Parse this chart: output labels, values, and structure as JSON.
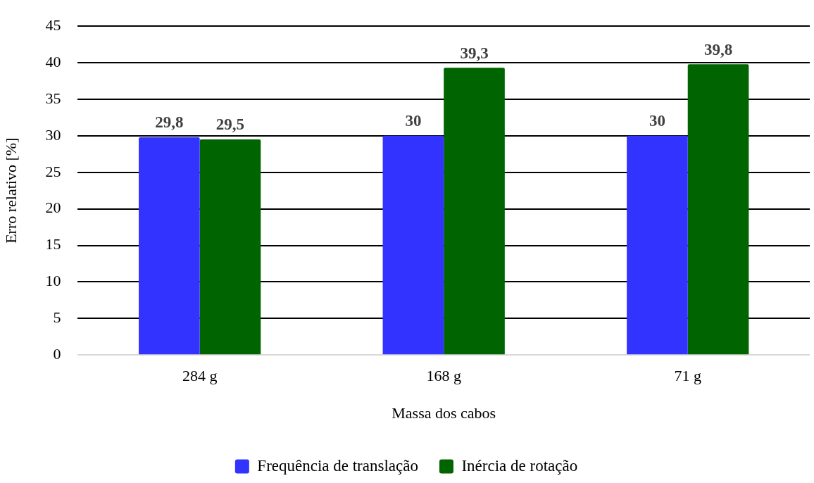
{
  "chart_data": {
    "type": "bar",
    "xlabel": "Massa dos cabos",
    "ylabel": "Erro relativo [%]",
    "categories": [
      "284 g",
      "168 g",
      "71 g"
    ],
    "series": [
      {
        "name": "Frequência de translação",
        "color": "#3333ff",
        "values": [
          29.8,
          30,
          30
        ],
        "value_labels": [
          "29,8",
          "30",
          "30"
        ]
      },
      {
        "name": "Inércia de rotação",
        "color": "#006400",
        "values": [
          29.5,
          39.3,
          39.8
        ],
        "value_labels": [
          "29,5",
          "39,3",
          "39,8"
        ]
      }
    ],
    "ylim": [
      0,
      45
    ],
    "yticks": [
      0,
      5,
      10,
      15,
      20,
      25,
      30,
      35,
      40,
      45
    ],
    "grid": "y",
    "legend": "bottom"
  }
}
